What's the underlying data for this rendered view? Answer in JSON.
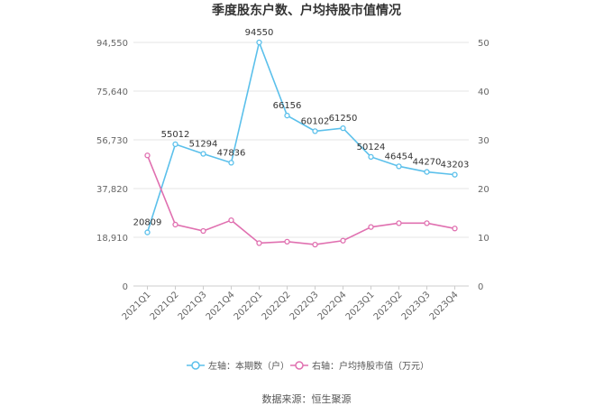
{
  "chart_data": {
    "type": "line",
    "title": "季度股东户数、户均持股市值情况",
    "categories": [
      "2021Q1",
      "2021Q2",
      "2021Q3",
      "2021Q4",
      "2022Q1",
      "2022Q2",
      "2022Q3",
      "2022Q4",
      "2023Q1",
      "2023Q2",
      "2023Q3",
      "2023Q4"
    ],
    "left_axis": {
      "ticks": [
        "0",
        "18,910",
        "37,820",
        "56,730",
        "75,640",
        "94,550"
      ],
      "ylim": [
        0,
        94550
      ]
    },
    "right_axis": {
      "ticks": [
        "0",
        "10",
        "20",
        "30",
        "40",
        "50"
      ],
      "ylim": [
        0,
        50
      ]
    },
    "series": [
      {
        "name": "左轴：本期数（户）",
        "axis": "left",
        "color": "#5bc0eb",
        "values": [
          20809,
          55012,
          51294,
          47836,
          94550,
          66156,
          60102,
          61250,
          50124,
          46454,
          44270,
          43203
        ],
        "labels": [
          "20809",
          "55012",
          "51294",
          "47836",
          "94550",
          "66156",
          "60102",
          "61250",
          "50124",
          "46454",
          "44270",
          "43203"
        ]
      },
      {
        "name": "右轴：户均持股市值（万元）",
        "axis": "right",
        "color": "#e070b0",
        "values": [
          26.8,
          12.6,
          11.3,
          13.5,
          8.8,
          9.1,
          8.5,
          9.3,
          12.1,
          12.9,
          12.9,
          11.8
        ]
      }
    ],
    "grid": true,
    "legend_position": "bottom"
  },
  "source": "数据来源：恒生聚源"
}
